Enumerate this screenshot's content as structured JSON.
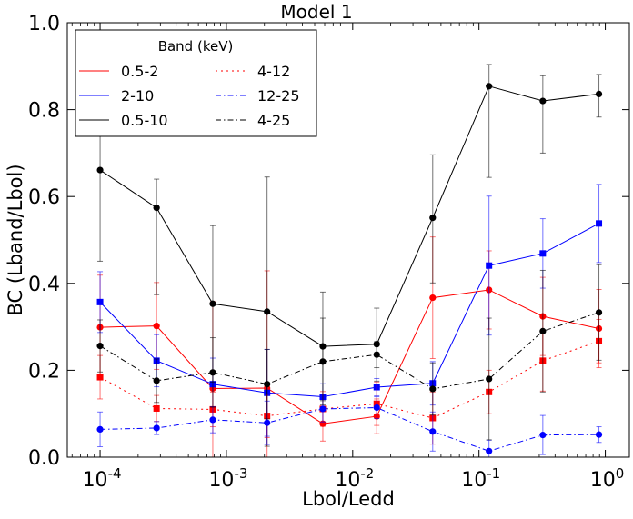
{
  "chart_data": {
    "type": "line",
    "title": "Model 1",
    "xlabel": "Lbol/Ledd",
    "ylabel": "BC (Lband/Lbol)",
    "xscale": "log",
    "xlim": [
      5.5e-05,
      1.55
    ],
    "ylim": [
      0.0,
      1.0
    ],
    "xticks": [
      0.0001,
      0.001,
      0.01,
      0.1,
      1
    ],
    "xtick_labels": [
      {
        "base": "10",
        "exp": "-4"
      },
      {
        "base": "10",
        "exp": "-3"
      },
      {
        "base": "10",
        "exp": "-2"
      },
      {
        "base": "10",
        "exp": "-1"
      },
      {
        "base": "10",
        "exp": "0"
      }
    ],
    "yticks": [
      0.0,
      0.2,
      0.4,
      0.6,
      0.8,
      1.0
    ],
    "ytick_labels": [
      "0.0",
      "0.2",
      "0.4",
      "0.6",
      "0.8",
      "1.0"
    ],
    "grid": false,
    "legend": {
      "title": "Band (keV)",
      "placement": "top-left",
      "columns": 2
    },
    "x": [
      0.0001,
      0.00028,
      0.00078,
      0.0021,
      0.0058,
      0.0155,
      0.043,
      0.12,
      0.32,
      0.89
    ],
    "series": [
      {
        "name": "0.5-2",
        "color": "#ff0000",
        "linestyle": "solid",
        "marker": "circle",
        "values": [
          0.299,
          0.302,
          0.158,
          0.159,
          0.077,
          0.094,
          0.367,
          0.385,
          0.324,
          0.296
        ],
        "yerr_low": [
          0.12,
          0.1,
          0.2,
          0.27,
          0.04,
          0.04,
          0.14,
          0.09,
          0.09,
          0.09
        ],
        "yerr_high": [
          0.12,
          0.1,
          0.2,
          0.27,
          0.04,
          0.04,
          0.14,
          0.09,
          0.09,
          0.09
        ]
      },
      {
        "name": "2-10",
        "color": "#0000ff",
        "linestyle": "solid",
        "marker": "square",
        "values": [
          0.357,
          0.222,
          0.168,
          0.148,
          0.139,
          0.161,
          0.17,
          0.441,
          0.469,
          0.538
        ],
        "yerr_low": [
          0.07,
          0.06,
          0.06,
          0.1,
          0.03,
          0.02,
          0.05,
          0.16,
          0.08,
          0.09
        ],
        "yerr_high": [
          0.07,
          0.06,
          0.06,
          0.1,
          0.03,
          0.02,
          0.05,
          0.16,
          0.08,
          0.09
        ]
      },
      {
        "name": "0.5-10",
        "color": "#000000",
        "linestyle": "solid",
        "marker": "circle",
        "values": [
          0.661,
          0.574,
          0.353,
          0.335,
          0.255,
          0.26,
          0.551,
          0.854,
          0.82,
          0.836
        ],
        "yerr_low": [
          0.21,
          0.2,
          0.18,
          0.31,
          0.125,
          0.085,
          0.15,
          0.21,
          0.12,
          0.053
        ],
        "yerr_high": [
          0.21,
          0.066,
          0.18,
          0.31,
          0.125,
          0.083,
          0.145,
          0.05,
          0.058,
          0.045
        ]
      },
      {
        "name": "4-12",
        "color": "#ff0000",
        "linestyle": "dotted",
        "marker": "square",
        "values": [
          0.184,
          0.112,
          0.11,
          0.095,
          0.111,
          0.123,
          0.09,
          0.15,
          0.222,
          0.267
        ],
        "yerr_low": [
          0.05,
          0.03,
          0.04,
          0.05,
          0.04,
          0.05,
          0.06,
          0.05,
          0.07,
          0.05
        ],
        "yerr_high": [
          0.05,
          0.03,
          0.04,
          0.05,
          0.04,
          0.05,
          0.06,
          0.05,
          0.07,
          0.05
        ]
      },
      {
        "name": "12-25",
        "color": "#0000ff",
        "linestyle": "dashdot",
        "marker": "circle",
        "values": [
          0.064,
          0.067,
          0.086,
          0.079,
          0.111,
          0.114,
          0.059,
          0.014,
          0.051,
          0.052
        ],
        "yerr_low": [
          0.04,
          0.015,
          0.03,
          0.05,
          0.03,
          0.025,
          0.045,
          0.025,
          0.045,
          0.018
        ],
        "yerr_high": [
          0.04,
          0.015,
          0.03,
          0.05,
          0.03,
          0.025,
          0.045,
          0.025,
          0.045,
          0.018
        ]
      },
      {
        "name": "4-25",
        "color": "#000000",
        "linestyle": "dashdot",
        "marker": "circle",
        "values": [
          0.256,
          0.176,
          0.195,
          0.168,
          0.22,
          0.236,
          0.157,
          0.18,
          0.29,
          0.333
        ],
        "yerr_low": [
          0.06,
          0.05,
          0.08,
          0.08,
          0.1,
          0.03,
          0.06,
          0.14,
          0.14,
          0.11
        ],
        "yerr_high": [
          0.06,
          0.05,
          0.08,
          0.08,
          0.1,
          0.03,
          0.06,
          0.14,
          0.14,
          0.11
        ]
      }
    ]
  }
}
